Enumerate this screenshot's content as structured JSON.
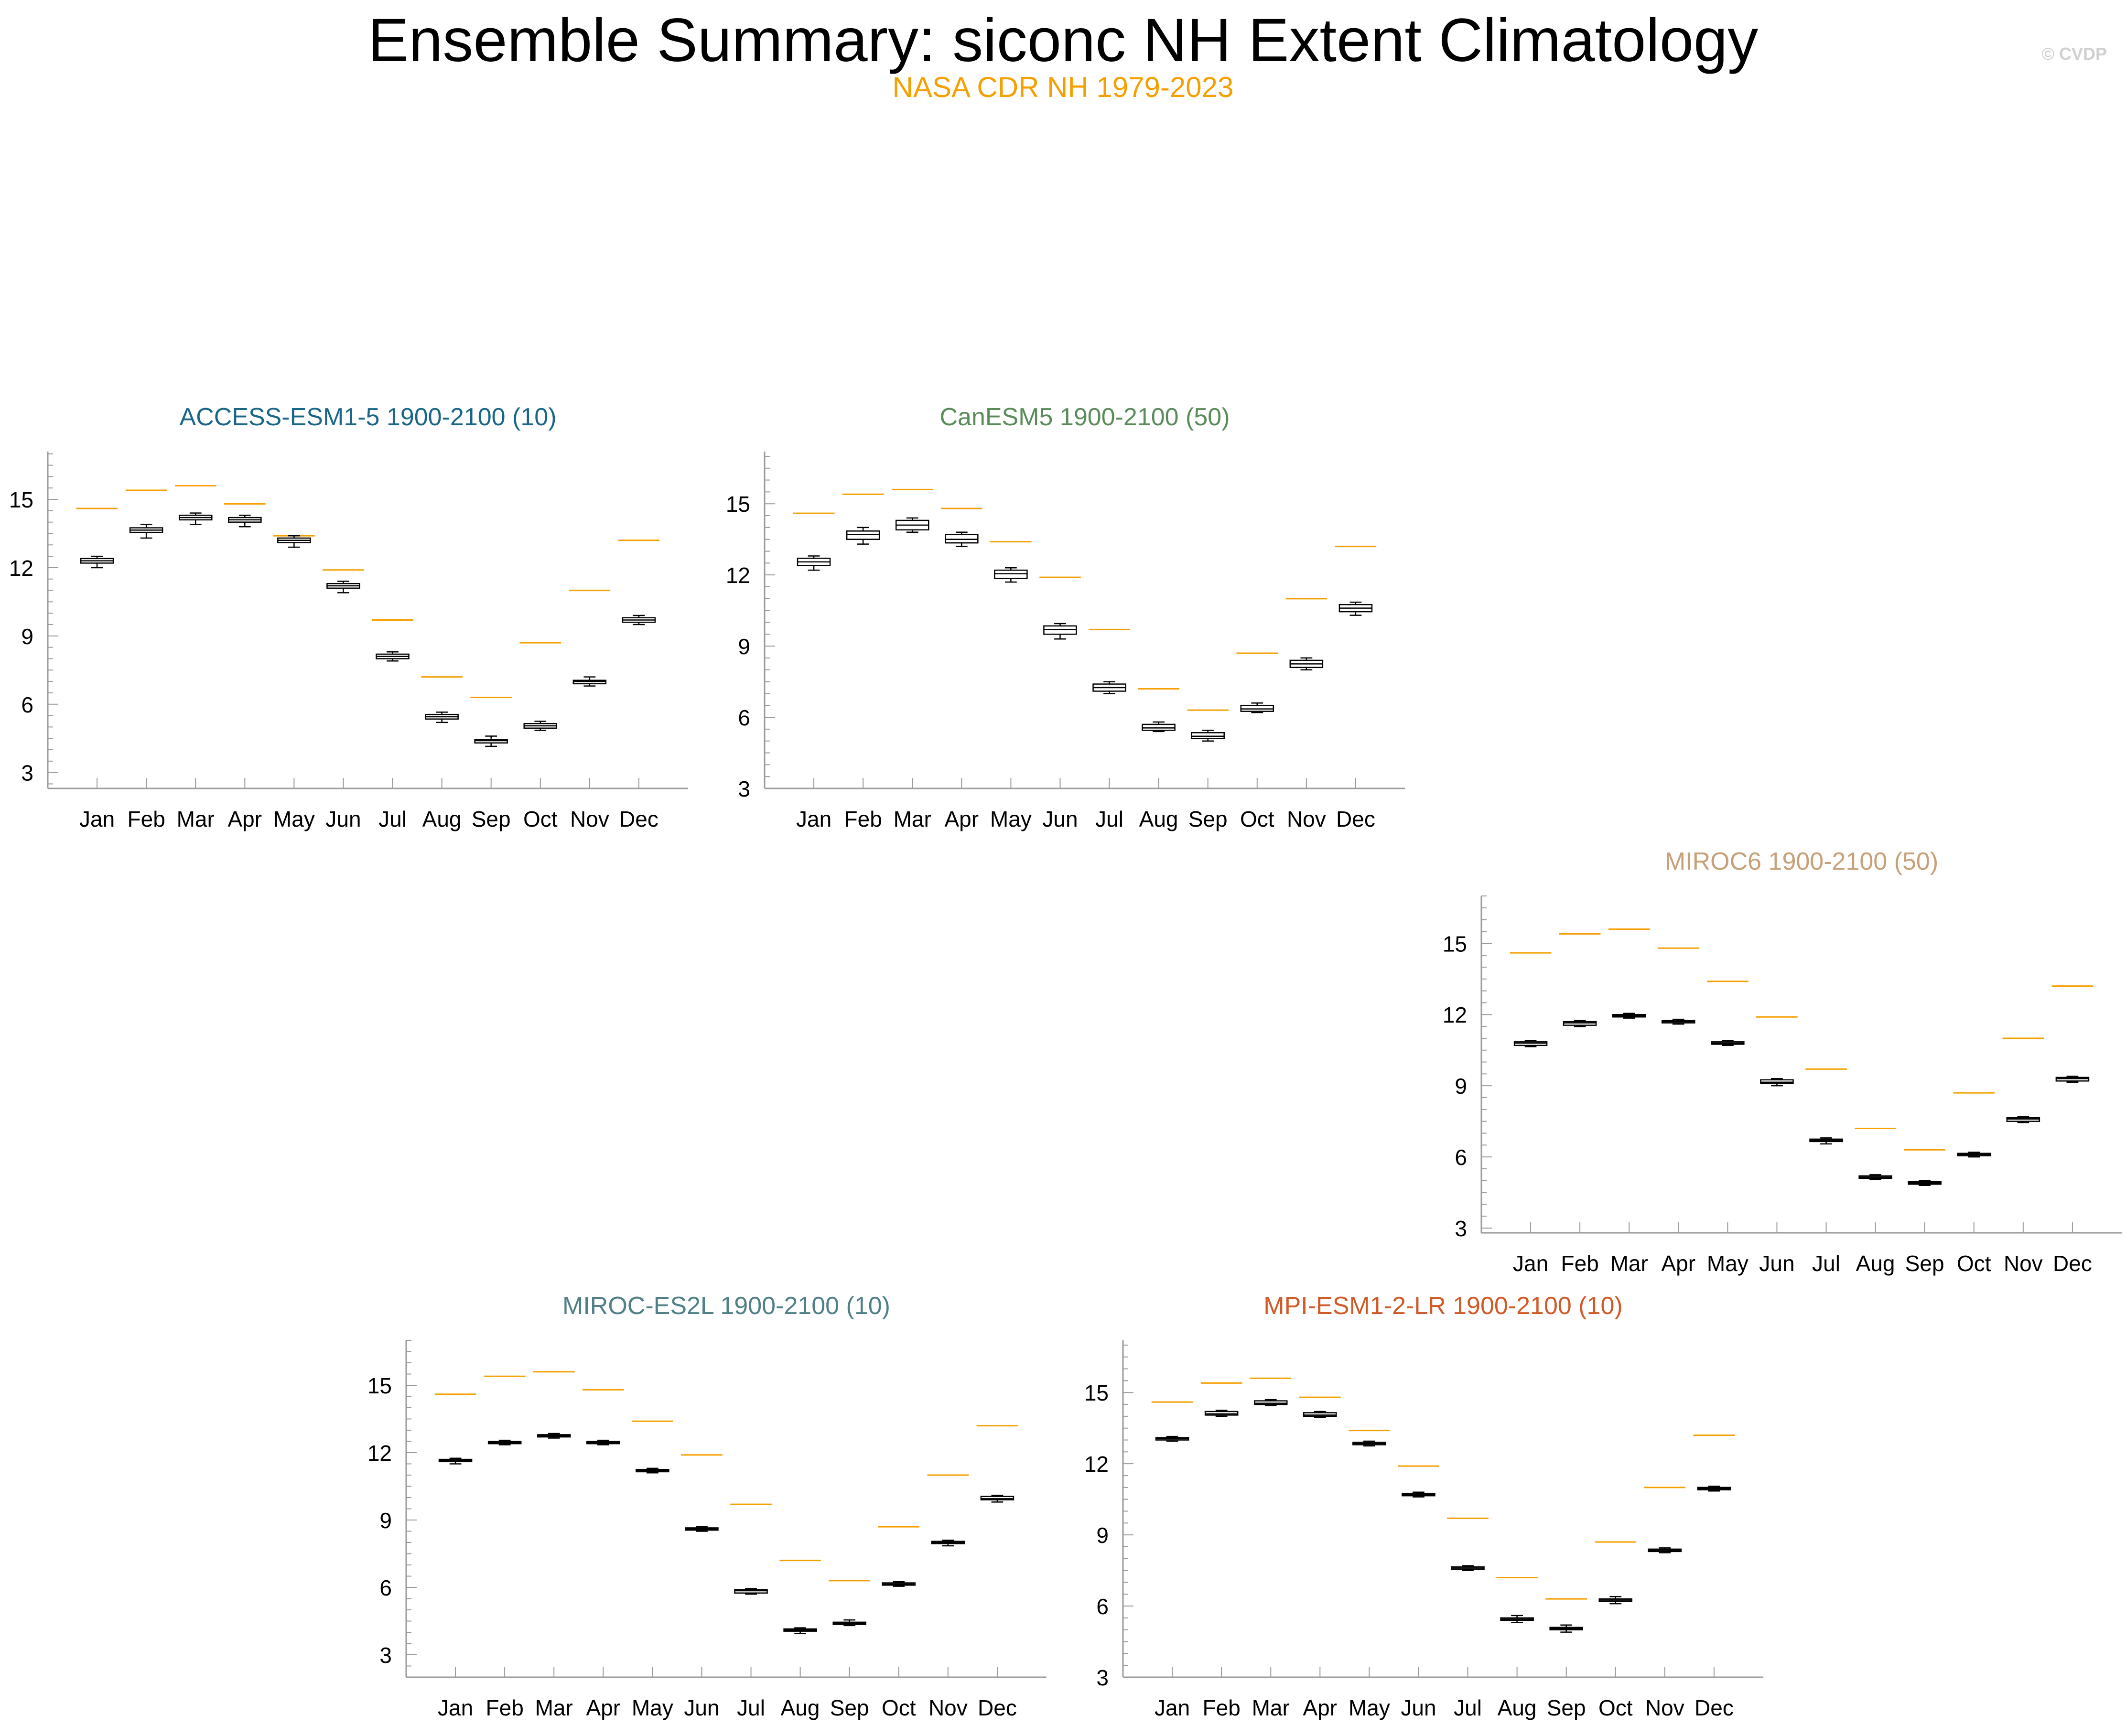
{
  "title": "Ensemble Summary: siconc NH Extent Climatology",
  "subtitle": "NASA CDR NH 1979-2023",
  "credit": "© CVDP",
  "colors": {
    "observations": "#f5a000",
    "box": "#000000",
    "axis": "#9a9a9a",
    "credit": "#d0d0d0"
  },
  "chart_data": [
    {
      "type": "box",
      "title": "ACCESS-ESM1-5 1900-2100 (10)",
      "title_color": "#1a6688",
      "categories": [
        "Jan",
        "Feb",
        "Mar",
        "Apr",
        "May",
        "Jun",
        "Jul",
        "Aug",
        "Sep",
        "Oct",
        "Nov",
        "Dec"
      ],
      "ylim": [
        2.3,
        17.1
      ],
      "yticks": [
        "3",
        "6",
        "9",
        "12",
        "15"
      ],
      "observations": [
        14.6,
        15.4,
        15.6,
        14.8,
        13.4,
        11.9,
        9.7,
        7.2,
        6.3,
        8.7,
        11.0,
        13.2
      ],
      "boxes": [
        {
          "min": 12.0,
          "q1": 12.2,
          "median": 12.3,
          "q3": 12.4,
          "max": 12.5
        },
        {
          "min": 13.3,
          "q1": 13.55,
          "median": 13.65,
          "q3": 13.75,
          "max": 13.9
        },
        {
          "min": 13.9,
          "q1": 14.1,
          "median": 14.2,
          "q3": 14.3,
          "max": 14.4
        },
        {
          "min": 13.8,
          "q1": 14.0,
          "median": 14.1,
          "q3": 14.2,
          "max": 14.3
        },
        {
          "min": 12.9,
          "q1": 13.1,
          "median": 13.2,
          "q3": 13.3,
          "max": 13.4
        },
        {
          "min": 10.9,
          "q1": 11.1,
          "median": 11.2,
          "q3": 11.3,
          "max": 11.4
        },
        {
          "min": 7.9,
          "q1": 8.0,
          "median": 8.1,
          "q3": 8.2,
          "max": 8.3
        },
        {
          "min": 5.2,
          "q1": 5.35,
          "median": 5.45,
          "q3": 5.55,
          "max": 5.65
        },
        {
          "min": 4.15,
          "q1": 4.3,
          "median": 4.4,
          "q3": 4.45,
          "max": 4.6
        },
        {
          "min": 4.85,
          "q1": 4.95,
          "median": 5.05,
          "q3": 5.15,
          "max": 5.25
        },
        {
          "min": 6.8,
          "q1": 6.9,
          "median": 7.0,
          "q3": 7.05,
          "max": 7.2
        },
        {
          "min": 9.5,
          "q1": 9.6,
          "median": 9.7,
          "q3": 9.8,
          "max": 9.9
        }
      ]
    },
    {
      "type": "box",
      "title": "CanESM5 1900-2100 (50)",
      "title_color": "#5a8c5a",
      "categories": [
        "Jan",
        "Feb",
        "Mar",
        "Apr",
        "May",
        "Jun",
        "Jul",
        "Aug",
        "Sep",
        "Oct",
        "Nov",
        "Dec"
      ],
      "ylim": [
        3.0,
        17.2
      ],
      "yticks": [
        "3",
        "6",
        "9",
        "12",
        "15"
      ],
      "observations": [
        14.6,
        15.4,
        15.6,
        14.8,
        13.4,
        11.9,
        9.7,
        7.2,
        6.3,
        8.7,
        11.0,
        13.2
      ],
      "boxes": [
        {
          "min": 12.2,
          "q1": 12.4,
          "median": 12.55,
          "q3": 12.7,
          "max": 12.8
        },
        {
          "min": 13.3,
          "q1": 13.5,
          "median": 13.7,
          "q3": 13.85,
          "max": 14.0
        },
        {
          "min": 13.8,
          "q1": 13.9,
          "median": 14.1,
          "q3": 14.3,
          "max": 14.4
        },
        {
          "min": 13.2,
          "q1": 13.35,
          "median": 13.5,
          "q3": 13.7,
          "max": 13.8
        },
        {
          "min": 11.7,
          "q1": 11.85,
          "median": 12.05,
          "q3": 12.2,
          "max": 12.3
        },
        {
          "min": 9.3,
          "q1": 9.5,
          "median": 9.7,
          "q3": 9.85,
          "max": 9.95
        },
        {
          "min": 7.0,
          "q1": 7.1,
          "median": 7.25,
          "q3": 7.4,
          "max": 7.5
        },
        {
          "min": 5.4,
          "q1": 5.45,
          "median": 5.55,
          "q3": 5.7,
          "max": 5.8
        },
        {
          "min": 5.0,
          "q1": 5.1,
          "median": 5.2,
          "q3": 5.35,
          "max": 5.45
        },
        {
          "min": 6.2,
          "q1": 6.25,
          "median": 6.35,
          "q3": 6.5,
          "max": 6.6
        },
        {
          "min": 8.0,
          "q1": 8.1,
          "median": 8.25,
          "q3": 8.4,
          "max": 8.5
        },
        {
          "min": 10.3,
          "q1": 10.45,
          "median": 10.6,
          "q3": 10.75,
          "max": 10.85
        }
      ]
    },
    {
      "type": "box",
      "title": "MIROC6 1900-2100 (50)",
      "title_color": "#c8a078",
      "categories": [
        "Jan",
        "Feb",
        "Mar",
        "Apr",
        "May",
        "Jun",
        "Jul",
        "Aug",
        "Sep",
        "Oct",
        "Nov",
        "Dec"
      ],
      "ylim": [
        2.8,
        17.0
      ],
      "yticks": [
        "3",
        "6",
        "9",
        "12",
        "15"
      ],
      "observations": [
        14.6,
        15.4,
        15.6,
        14.8,
        13.4,
        11.9,
        9.7,
        7.2,
        6.3,
        8.7,
        11.0,
        13.2
      ],
      "boxes": [
        {
          "min": 10.65,
          "q1": 10.7,
          "median": 10.8,
          "q3": 10.85,
          "max": 10.9
        },
        {
          "min": 11.5,
          "q1": 11.55,
          "median": 11.65,
          "q3": 11.7,
          "max": 11.75
        },
        {
          "min": 11.85,
          "q1": 11.9,
          "median": 11.95,
          "q3": 12.0,
          "max": 12.05
        },
        {
          "min": 11.6,
          "q1": 11.65,
          "median": 11.7,
          "q3": 11.75,
          "max": 11.8
        },
        {
          "min": 10.7,
          "q1": 10.75,
          "median": 10.8,
          "q3": 10.85,
          "max": 10.9
        },
        {
          "min": 9.0,
          "q1": 9.1,
          "median": 9.15,
          "q3": 9.25,
          "max": 9.3
        },
        {
          "min": 6.55,
          "q1": 6.65,
          "median": 6.7,
          "q3": 6.75,
          "max": 6.8
        },
        {
          "min": 5.05,
          "q1": 5.1,
          "median": 5.15,
          "q3": 5.2,
          "max": 5.25
        },
        {
          "min": 4.8,
          "q1": 4.85,
          "median": 4.9,
          "q3": 4.95,
          "max": 5.0
        },
        {
          "min": 6.0,
          "q1": 6.05,
          "median": 6.1,
          "q3": 6.15,
          "max": 6.2
        },
        {
          "min": 7.45,
          "q1": 7.5,
          "median": 7.6,
          "q3": 7.65,
          "max": 7.7
        },
        {
          "min": 9.15,
          "q1": 9.2,
          "median": 9.3,
          "q3": 9.35,
          "max": 9.4
        }
      ]
    },
    {
      "type": "box",
      "title": "MIROC-ES2L 1900-2100 (10)",
      "title_color": "#4f8088",
      "categories": [
        "Jan",
        "Feb",
        "Mar",
        "Apr",
        "May",
        "Jun",
        "Jul",
        "Aug",
        "Sep",
        "Oct",
        "Nov",
        "Dec"
      ],
      "ylim": [
        2.0,
        17.0
      ],
      "yticks": [
        "3",
        "6",
        "9",
        "12",
        "15"
      ],
      "observations": [
        14.6,
        15.4,
        15.6,
        14.8,
        13.4,
        11.9,
        9.7,
        7.2,
        6.3,
        8.7,
        11.0,
        13.2
      ],
      "boxes": [
        {
          "min": 11.5,
          "q1": 11.6,
          "median": 11.65,
          "q3": 11.7,
          "max": 11.75
        },
        {
          "min": 12.35,
          "q1": 12.4,
          "median": 12.45,
          "q3": 12.5,
          "max": 12.55
        },
        {
          "min": 12.65,
          "q1": 12.7,
          "median": 12.75,
          "q3": 12.8,
          "max": 12.85
        },
        {
          "min": 12.35,
          "q1": 12.4,
          "median": 12.45,
          "q3": 12.5,
          "max": 12.55
        },
        {
          "min": 11.1,
          "q1": 11.15,
          "median": 11.2,
          "q3": 11.25,
          "max": 11.3
        },
        {
          "min": 8.5,
          "q1": 8.55,
          "median": 8.6,
          "q3": 8.65,
          "max": 8.7
        },
        {
          "min": 5.7,
          "q1": 5.75,
          "median": 5.85,
          "q3": 5.9,
          "max": 5.95
        },
        {
          "min": 3.95,
          "q1": 4.05,
          "median": 4.1,
          "q3": 4.15,
          "max": 4.2
        },
        {
          "min": 4.3,
          "q1": 4.35,
          "median": 4.4,
          "q3": 4.45,
          "max": 4.55
        },
        {
          "min": 6.05,
          "q1": 6.1,
          "median": 6.15,
          "q3": 6.2,
          "max": 6.25
        },
        {
          "min": 7.85,
          "q1": 7.95,
          "median": 8.0,
          "q3": 8.05,
          "max": 8.1
        },
        {
          "min": 9.8,
          "q1": 9.9,
          "median": 9.95,
          "q3": 10.05,
          "max": 10.1
        }
      ]
    },
    {
      "type": "box",
      "title": "MPI-ESM1-2-LR 1900-2100 (10)",
      "title_color": "#d05a28",
      "categories": [
        "Jan",
        "Feb",
        "Mar",
        "Apr",
        "May",
        "Jun",
        "Jul",
        "Aug",
        "Sep",
        "Oct",
        "Nov",
        "Dec"
      ],
      "ylim": [
        3.0,
        17.2
      ],
      "yticks": [
        "3",
        "6",
        "9",
        "12",
        "15"
      ],
      "observations": [
        14.6,
        15.4,
        15.6,
        14.8,
        13.4,
        11.9,
        9.7,
        7.2,
        6.3,
        8.7,
        11.0,
        13.2
      ],
      "boxes": [
        {
          "min": 12.95,
          "q1": 13.0,
          "median": 13.05,
          "q3": 13.1,
          "max": 13.15
        },
        {
          "min": 14.0,
          "q1": 14.05,
          "median": 14.1,
          "q3": 14.2,
          "max": 14.25
        },
        {
          "min": 14.45,
          "q1": 14.5,
          "median": 14.55,
          "q3": 14.65,
          "max": 14.7
        },
        {
          "min": 13.95,
          "q1": 14.0,
          "median": 14.05,
          "q3": 14.15,
          "max": 14.2
        },
        {
          "min": 12.75,
          "q1": 12.8,
          "median": 12.85,
          "q3": 12.9,
          "max": 12.95
        },
        {
          "min": 10.6,
          "q1": 10.65,
          "median": 10.7,
          "q3": 10.75,
          "max": 10.8
        },
        {
          "min": 7.5,
          "q1": 7.55,
          "median": 7.6,
          "q3": 7.65,
          "max": 7.7
        },
        {
          "min": 5.3,
          "q1": 5.4,
          "median": 5.45,
          "q3": 5.5,
          "max": 5.6
        },
        {
          "min": 4.9,
          "q1": 5.0,
          "median": 5.05,
          "q3": 5.1,
          "max": 5.2
        },
        {
          "min": 6.1,
          "q1": 6.2,
          "median": 6.25,
          "q3": 6.3,
          "max": 6.4
        },
        {
          "min": 8.25,
          "q1": 8.3,
          "median": 8.35,
          "q3": 8.4,
          "max": 8.45
        },
        {
          "min": 10.85,
          "q1": 10.9,
          "median": 10.95,
          "q3": 11.0,
          "max": 11.05
        }
      ]
    }
  ]
}
